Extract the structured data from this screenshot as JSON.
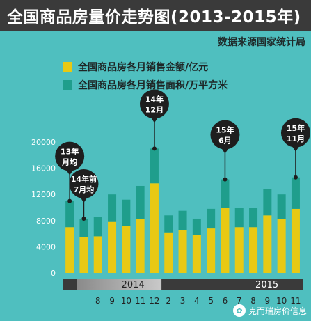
{
  "title": "全国商品房量价走势图(2013-2015年)",
  "source": "数据来源国家统计局",
  "watermark": "克而瑞房价信息",
  "colors": {
    "background": "#4fbfbf",
    "amount": "#e8c914",
    "area": "#1f9e8c",
    "dark": "#3a3a3a",
    "gray": "#8a8a8a",
    "light": "#c9c9c9"
  },
  "chart_data": {
    "type": "bar",
    "stacked": true,
    "ylim": [
      0,
      20000
    ],
    "yticks": [
      "0",
      "4000",
      "8000",
      "12000",
      "16000",
      "20000"
    ],
    "ytick_values": [
      0,
      4000,
      8000,
      12000,
      16000,
      20000
    ],
    "categories": [
      "",
      "",
      "8",
      "9",
      "10",
      "11",
      "12",
      "2",
      "3",
      "4",
      "5",
      "6",
      "7",
      "8",
      "9",
      "10",
      "11"
    ],
    "years": [
      {
        "label": "2014",
        "start": 1,
        "end": 6
      },
      {
        "label": "2015",
        "start": 7,
        "end": 16
      }
    ],
    "series": [
      {
        "name": "全国商品房各月销售金额/亿元",
        "values": [
          7000,
          5500,
          5600,
          7800,
          7200,
          8300,
          13700,
          6200,
          6500,
          5800,
          6800,
          10000,
          7000,
          7000,
          8800,
          8200,
          9800
        ]
      },
      {
        "name": "全国商品房各月销售面积/万平方米",
        "values": [
          4000,
          2800,
          3000,
          4200,
          4000,
          5000,
          5300,
          2600,
          3000,
          2500,
          3000,
          4300,
          3000,
          3000,
          4000,
          3800,
          4800
        ]
      }
    ],
    "annotations": [
      {
        "index": 0,
        "lines": [
          "13年",
          "月均"
        ]
      },
      {
        "index": 1,
        "lines": [
          "14年前",
          "7月均"
        ]
      },
      {
        "index": 6,
        "lines": [
          "14年",
          "12月"
        ]
      },
      {
        "index": 11,
        "lines": [
          "15年",
          "6月"
        ]
      },
      {
        "index": 16,
        "lines": [
          "15年",
          "11月"
        ]
      }
    ]
  }
}
